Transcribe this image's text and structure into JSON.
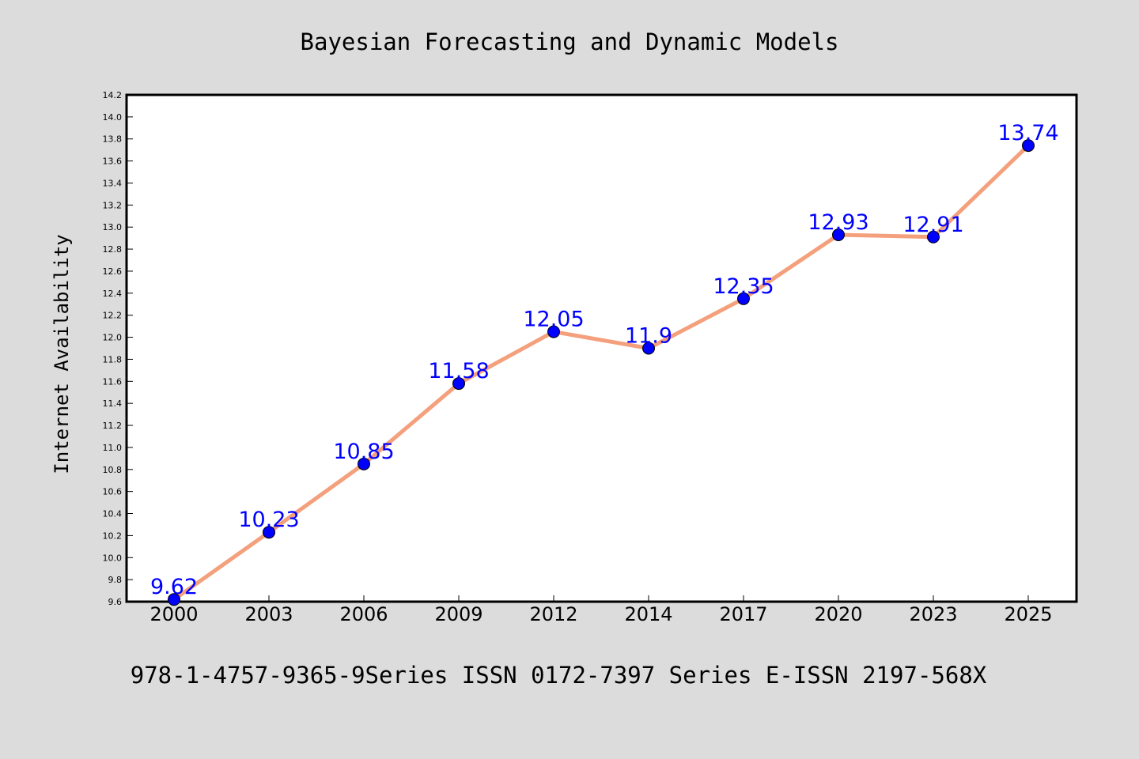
{
  "chart_data": {
    "type": "line",
    "title": "Bayesian Forecasting and Dynamic Models",
    "xlabel": "",
    "ylabel": "Internet Availability",
    "footer": "978-1-4757-9365-9Series ISSN 0172-7397 Series E-ISSN 2197-568X",
    "categories": [
      "2000",
      "2003",
      "2006",
      "2009",
      "2012",
      "2014",
      "2017",
      "2020",
      "2023",
      "2025"
    ],
    "series": [
      {
        "values": [
          9.62,
          10.23,
          10.85,
          11.58,
          12.05,
          11.9,
          12.35,
          12.93,
          12.91,
          13.74
        ],
        "labels": [
          "9.62",
          "10.23",
          "10.85",
          "11.58",
          "12.05",
          "11.9",
          "12.35",
          "12.93",
          "12.91",
          "13.74"
        ]
      }
    ],
    "ylim": [
      9.6,
      14.2
    ],
    "yticks": [
      "9.6",
      "9.8",
      "10.0",
      "10.2",
      "10.4",
      "10.6",
      "10.8",
      "11.0",
      "11.2",
      "11.4",
      "11.6",
      "11.8",
      "12.0",
      "12.2",
      "12.4",
      "12.6",
      "12.8",
      "13.0",
      "13.2",
      "13.4",
      "13.6",
      "13.8",
      "14.0",
      "14.2"
    ],
    "grid": false,
    "legend": "none",
    "colors": {
      "background": "#dcdcdc",
      "plot_background": "#ffffff",
      "line": "#f4a07c",
      "marker": "#0000ff",
      "data_label": "#0000ff",
      "text": "#000000"
    }
  }
}
